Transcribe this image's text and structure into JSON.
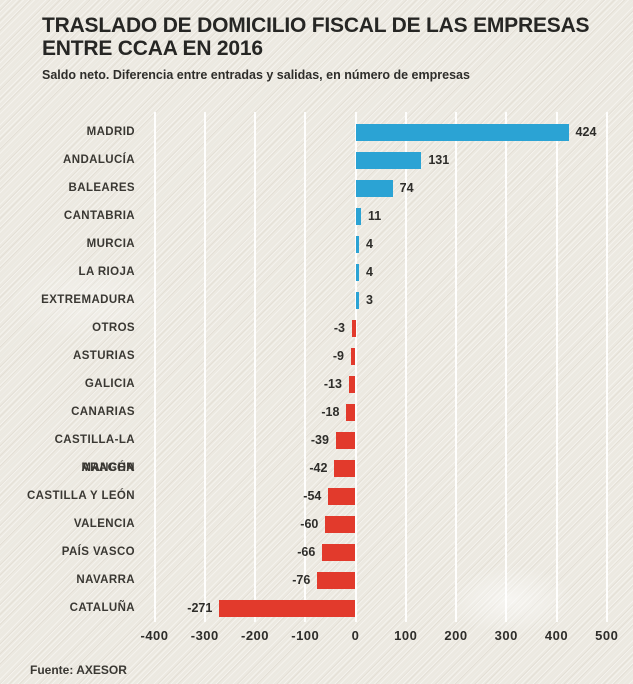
{
  "header": {
    "title_line1": "TRASLADO DE DOMICILIO FISCAL DE LAS EMPRESAS",
    "title_line2": "ENTRE CCAA EN 2016",
    "subtitle": "Saldo neto. Diferencia entre entradas y salidas, en número de empresas"
  },
  "footer": {
    "source": "Fuente: AXESOR"
  },
  "colors": {
    "positive": "#2ba3d4",
    "negative": "#e23a2c",
    "background": "#ece9e1",
    "gridline": "#ffffff",
    "text": "#2e2d2a"
  },
  "chart_data": {
    "type": "bar",
    "orientation": "horizontal",
    "title": "TRASLADO DE DOMICILIO FISCAL DE LAS EMPRESAS ENTRE CCAA EN 2016",
    "subtitle": "Saldo neto. Diferencia entre entradas y salidas, en número de empresas",
    "source": "Fuente: AXESOR",
    "categories": [
      "MADRID",
      "ANDALUCÍA",
      "BALEARES",
      "CANTABRIA",
      "MURCIA",
      "LA RIOJA",
      "EXTREMADURA",
      "OTROS",
      "ASTURIAS",
      "GALICIA",
      "CANARIAS",
      "CASTILLA-LA MANCHA",
      "ARAGÓN",
      "CASTILLA Y LEÓN",
      "VALENCIA",
      "PAÍS VASCO",
      "NAVARRA",
      "CATALUÑA"
    ],
    "values": [
      424,
      131,
      74,
      11,
      4,
      4,
      3,
      -3,
      -9,
      -13,
      -18,
      -39,
      -42,
      -54,
      -60,
      -66,
      -76,
      -271
    ],
    "x_ticks": [
      -400,
      -300,
      -200,
      -100,
      0,
      100,
      200,
      300,
      400,
      500
    ],
    "xlim": [
      -440,
      555
    ],
    "grid": true,
    "legend": false,
    "positive_color": "#2ba3d4",
    "negative_color": "#e23a2c"
  }
}
